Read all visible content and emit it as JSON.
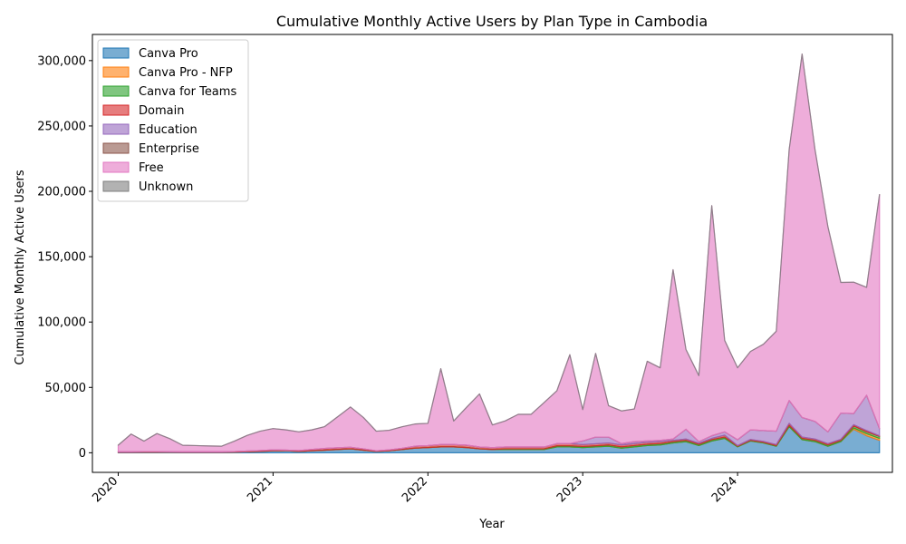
{
  "chart_data": {
    "type": "area",
    "stacked": true,
    "title": "Cumulative Monthly Active Users by Plan Type in Cambodia",
    "xlabel": "Year",
    "ylabel": "Cumulative Monthly Active Users",
    "x_ticks": [
      "2020",
      "2021",
      "2022",
      "2023",
      "2024"
    ],
    "y_ticks": [
      "0",
      "50,000",
      "100,000",
      "150,000",
      "200,000",
      "250,000",
      "300,000"
    ],
    "y_tick_values": [
      0,
      50000,
      100000,
      150000,
      200000,
      250000,
      300000
    ],
    "xlim": [
      "2019-11",
      "2025-01"
    ],
    "ylim": [
      -15000,
      320000
    ],
    "legend_position": "upper left",
    "x": [
      "2020-01",
      "2020-02",
      "2020-03",
      "2020-04",
      "2020-05",
      "2020-06",
      "2020-07",
      "2020-08",
      "2020-09",
      "2020-10",
      "2020-11",
      "2020-12",
      "2021-01",
      "2021-02",
      "2021-03",
      "2021-04",
      "2021-05",
      "2021-06",
      "2021-07",
      "2021-08",
      "2021-09",
      "2021-10",
      "2021-11",
      "2021-12",
      "2022-01",
      "2022-02",
      "2022-03",
      "2022-04",
      "2022-05",
      "2022-06",
      "2022-07",
      "2022-08",
      "2022-09",
      "2022-10",
      "2022-11",
      "2022-12",
      "2023-01",
      "2023-02",
      "2023-03",
      "2023-04",
      "2023-05",
      "2023-06",
      "2023-07",
      "2023-08",
      "2023-09",
      "2023-10",
      "2023-11",
      "2023-12",
      "2024-01",
      "2024-02",
      "2024-03",
      "2024-04",
      "2024-05",
      "2024-06",
      "2024-07",
      "2024-08",
      "2024-09",
      "2024-10",
      "2024-11",
      "2024-12"
    ],
    "series": [
      {
        "name": "Canva Pro",
        "color": "#1f77b4",
        "values": [
          300,
          300,
          400,
          400,
          400,
          300,
          300,
          300,
          300,
          500,
          800,
          1000,
          1500,
          1500,
          1000,
          1500,
          2000,
          2500,
          3000,
          2000,
          1000,
          1500,
          2500,
          3500,
          4000,
          4500,
          4500,
          4000,
          3000,
          2500,
          2500,
          2500,
          2500,
          2500,
          4500,
          4500,
          4000,
          4500,
          5000,
          3500,
          4500,
          5500,
          6000,
          7500,
          8500,
          5500,
          9000,
          11000,
          4500,
          9000,
          7500,
          5000,
          20000,
          10000,
          8500,
          5000,
          8500,
          18000,
          13000,
          9500
        ]
      },
      {
        "name": "Canva Pro - NFP",
        "color": "#ff7f0e",
        "values": [
          0,
          0,
          0,
          0,
          0,
          0,
          0,
          0,
          0,
          0,
          0,
          0,
          0,
          0,
          0,
          0,
          0,
          0,
          0,
          0,
          0,
          0,
          0,
          0,
          0,
          0,
          0,
          0,
          0,
          0,
          0,
          0,
          0,
          0,
          0,
          0,
          0,
          0,
          0,
          0,
          0,
          0,
          0,
          0,
          0,
          0,
          0,
          0,
          0,
          0,
          0,
          0,
          0,
          0,
          0,
          0,
          0,
          1000,
          1500,
          1500
        ]
      },
      {
        "name": "Canva for Teams",
        "color": "#2ca02c",
        "values": [
          0,
          0,
          0,
          0,
          0,
          0,
          0,
          0,
          0,
          0,
          0,
          0,
          0,
          0,
          0,
          0,
          0,
          0,
          0,
          0,
          0,
          0,
          0,
          0,
          0,
          0,
          0,
          0,
          0,
          0,
          500,
          500,
          500,
          500,
          800,
          800,
          800,
          800,
          1000,
          1000,
          1000,
          1000,
          1000,
          1000,
          1000,
          1000,
          1000,
          1000,
          500,
          500,
          500,
          500,
          1000,
          1000,
          1000,
          1000,
          1000,
          1500,
          1500,
          1500
        ]
      },
      {
        "name": "Domain",
        "color": "#d62728",
        "values": [
          500,
          500,
          500,
          500,
          400,
          400,
          400,
          400,
          400,
          400,
          500,
          700,
          700,
          500,
          700,
          1000,
          1300,
          1300,
          1200,
          1000,
          500,
          700,
          900,
          1500,
          1500,
          1800,
          1800,
          1800,
          1400,
          1400,
          1400,
          1400,
          1400,
          1400,
          1700,
          1700,
          1500,
          1600,
          1500,
          1500,
          1500,
          1500,
          1500,
          1000,
          1000,
          800,
          1000,
          1500,
          500,
          700,
          700,
          800,
          1500,
          1000,
          1000,
          1000,
          800,
          1000,
          1000,
          500
        ]
      },
      {
        "name": "Education",
        "color": "#9467bd",
        "values": [
          0,
          0,
          0,
          0,
          0,
          0,
          0,
          0,
          0,
          0,
          0,
          0,
          0,
          0,
          0,
          0,
          0,
          0,
          0,
          0,
          0,
          0,
          0,
          0,
          0,
          0,
          0,
          0,
          0,
          0,
          0,
          0,
          0,
          0,
          0,
          0,
          2700,
          5100,
          4500,
          1000,
          1500,
          1000,
          1000,
          1000,
          7500,
          1200,
          2000,
          2500,
          4500,
          7300,
          8300,
          10200,
          17500,
          15000,
          13500,
          9000,
          20000,
          8500,
          27000,
          5500
        ]
      },
      {
        "name": "Enterprise",
        "color": "#8c564b",
        "values": [
          0,
          0,
          0,
          0,
          0,
          0,
          0,
          0,
          0,
          0,
          0,
          0,
          0,
          0,
          0,
          0,
          0,
          0,
          0,
          0,
          0,
          0,
          0,
          0,
          0,
          0,
          0,
          0,
          0,
          0,
          0,
          0,
          0,
          0,
          0,
          0,
          0,
          0,
          0,
          0,
          0,
          0,
          0,
          0,
          0,
          0,
          0,
          0,
          0,
          0,
          0,
          0,
          0,
          0,
          0,
          0,
          0,
          0,
          0,
          0
        ]
      },
      {
        "name": "Free",
        "color": "#e377c2",
        "values": [
          5000,
          13500,
          8000,
          13800,
          10000,
          5000,
          4800,
          4500,
          4300,
          8000,
          12000,
          14800,
          16300,
          15500,
          14300,
          15000,
          16700,
          23700,
          30800,
          24000,
          15000,
          15000,
          16500,
          17000,
          17000,
          58000,
          18000,
          29000,
          40600,
          17400,
          20000,
          25000,
          25000,
          34000,
          40500,
          68000,
          24000,
          64000,
          24000,
          25000,
          25000,
          61000,
          55500,
          129500,
          61000,
          50500,
          176000,
          70000,
          55000,
          60000,
          66000,
          76500,
          192000,
          278000,
          208000,
          157000,
          100000,
          100500,
          82500,
          179000
        ]
      },
      {
        "name": "Unknown",
        "color": "#7f7f7f",
        "values": [
          0,
          0,
          0,
          0,
          0,
          0,
          0,
          0,
          0,
          0,
          0,
          0,
          0,
          0,
          0,
          0,
          0,
          0,
          0,
          0,
          0,
          0,
          0,
          0,
          0,
          0,
          0,
          0,
          0,
          0,
          0,
          0,
          0,
          0,
          0,
          0,
          0,
          0,
          0,
          0,
          0,
          0,
          0,
          0,
          0,
          0,
          0,
          0,
          0,
          0,
          0,
          0,
          0,
          0,
          0,
          0,
          0,
          0,
          0,
          0
        ]
      }
    ]
  }
}
